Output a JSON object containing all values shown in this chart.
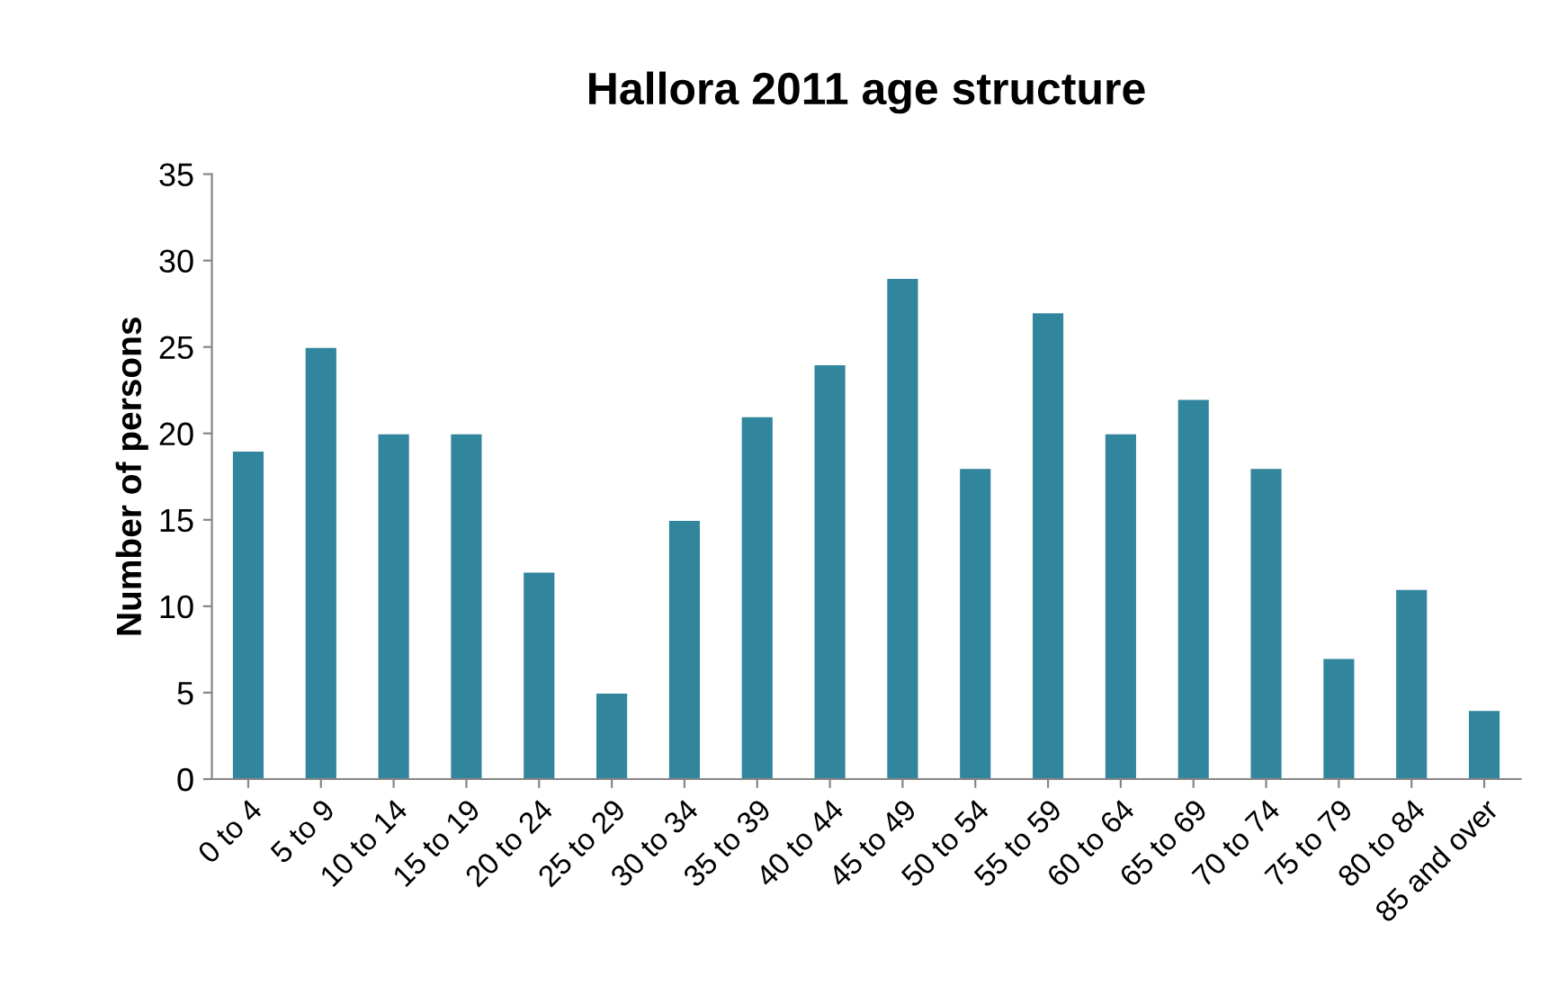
{
  "chart_data": {
    "type": "bar",
    "title": "Hallora 2011 age structure",
    "ylabel": "Number of persons",
    "categories": [
      "0 to 4",
      "5 to 9",
      "10 to 14",
      "15 to 19",
      "20 to 24",
      "25 to 29",
      "30 to 34",
      "35 to 39",
      "40 to 44",
      "45 to 49",
      "50 to 54",
      "55 to 59",
      "60 to 64",
      "65 to 69",
      "70 to 74",
      "75 to 79",
      "80 to 84",
      "85 and over"
    ],
    "values": [
      19,
      25,
      20,
      20,
      12,
      5,
      15,
      21,
      24,
      29,
      18,
      27,
      20,
      22,
      18,
      7,
      11,
      4
    ],
    "color": "#31859c",
    "ylim": [
      0,
      35
    ],
    "yticks": [
      0,
      5,
      10,
      15,
      20,
      25,
      30,
      35
    ],
    "grid": false,
    "legend": false
  }
}
